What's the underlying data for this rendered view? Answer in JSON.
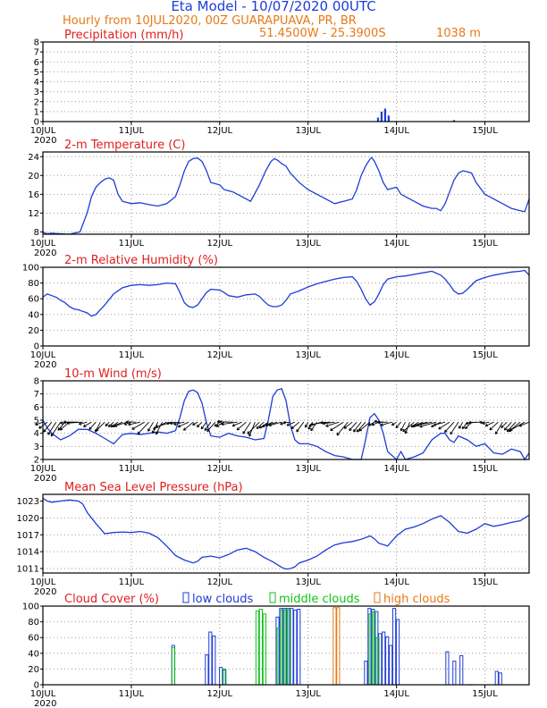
{
  "header": {
    "title": "Eta Model - 10/07/2020 00UTC",
    "subtitle": "Hourly from 10JUL2020, 00Z  GUARAPUAVA, PR, BR",
    "coords": "51.4500W - 25.3900S",
    "elevation": "1038  m"
  },
  "colors": {
    "line": "#1e3cd7",
    "title_red": "#e11e1e",
    "orange": "#e67a17",
    "green": "#11c21b",
    "axis": "#000000",
    "grid": "#9a9a9a"
  },
  "chart_data": [
    {
      "type": "bar",
      "title": "Precipitation (mm/h)",
      "xlim": [
        0,
        5.5
      ],
      "ylim": [
        0,
        8
      ],
      "yticks": [
        0,
        1,
        2,
        3,
        4,
        5,
        6,
        7,
        8
      ],
      "xticks": [
        {
          "day": 0,
          "label": "10JUL",
          "year": "2020"
        },
        {
          "day": 1,
          "label": "11JUL"
        },
        {
          "day": 2,
          "label": "12JUL"
        },
        {
          "day": 3,
          "label": "13JUL"
        },
        {
          "day": 4,
          "label": "14JUL"
        },
        {
          "day": 5,
          "label": "15JUL"
        }
      ],
      "bars": [
        {
          "x": 3.79,
          "v": 0.4
        },
        {
          "x": 3.83,
          "v": 1.0
        },
        {
          "x": 3.87,
          "v": 1.3
        },
        {
          "x": 3.91,
          "v": 0.6
        },
        {
          "x": 4.65,
          "v": 0.15
        }
      ]
    },
    {
      "type": "line",
      "title": "2-m Temperature (C)",
      "xlim": [
        0,
        5.5
      ],
      "ylim": [
        7.5,
        25
      ],
      "yticks": [
        8,
        12,
        16,
        20,
        24
      ],
      "xticks": [
        {
          "day": 0,
          "label": "10JUL",
          "year": "2020"
        },
        {
          "day": 1,
          "label": "11JUL"
        },
        {
          "day": 2,
          "label": "12JUL"
        },
        {
          "day": 3,
          "label": "13JUL"
        },
        {
          "day": 4,
          "label": "14JUL"
        },
        {
          "day": 5,
          "label": "15JUL"
        }
      ],
      "x": [
        0,
        0.04,
        0.1,
        0.2,
        0.3,
        0.42,
        0.5,
        0.55,
        0.6,
        0.65,
        0.7,
        0.75,
        0.8,
        0.85,
        0.9,
        1.0,
        1.1,
        1.2,
        1.3,
        1.4,
        1.5,
        1.55,
        1.6,
        1.65,
        1.7,
        1.75,
        1.8,
        1.85,
        1.9,
        2.0,
        2.05,
        2.15,
        2.25,
        2.35,
        2.45,
        2.52,
        2.58,
        2.62,
        2.66,
        2.7,
        2.75,
        2.8,
        2.85,
        2.9,
        3.0,
        3.1,
        3.2,
        3.3,
        3.4,
        3.5,
        3.55,
        3.6,
        3.65,
        3.7,
        3.72,
        3.75,
        3.8,
        3.85,
        3.9,
        4.0,
        4.05,
        4.1,
        4.2,
        4.3,
        4.4,
        4.45,
        4.5,
        4.55,
        4.6,
        4.65,
        4.7,
        4.75,
        4.8,
        4.85,
        4.9,
        5.0,
        5.1,
        5.2,
        5.3,
        5.4,
        5.45,
        5.5
      ],
      "values": [
        8,
        7.6,
        7.7,
        7.6,
        7.5,
        8.0,
        12,
        15.5,
        17.5,
        18.5,
        19.2,
        19.5,
        19.0,
        16,
        14.5,
        14.0,
        14.2,
        13.8,
        13.5,
        14.0,
        15.5,
        18,
        21,
        23,
        23.6,
        23.7,
        23.0,
        21,
        18.5,
        18.0,
        17.0,
        16.5,
        15.5,
        14.5,
        18,
        21,
        23,
        23.6,
        23.2,
        22.5,
        22.0,
        20.5,
        19.5,
        18.5,
        17.0,
        16.0,
        15.0,
        14.0,
        14.5,
        15.0,
        17,
        20,
        22,
        23.5,
        23.8,
        23.0,
        21,
        18.5,
        17.0,
        17.5,
        16.0,
        15.5,
        14.5,
        13.5,
        13.0,
        13.0,
        12.5,
        14,
        16.5,
        19,
        20.5,
        21.0,
        20.8,
        20.5,
        18.5,
        16.0,
        15.0,
        14.0,
        13.0,
        12.5,
        12.3,
        15.0
      ]
    },
    {
      "type": "line",
      "title": "2-m Relative Humidity (%)",
      "xlim": [
        0,
        5.5
      ],
      "ylim": [
        0,
        100
      ],
      "yticks": [
        0,
        20,
        40,
        60,
        80,
        100
      ],
      "xticks": [
        {
          "day": 0,
          "label": "10JUL",
          "year": "2020"
        },
        {
          "day": 1,
          "label": "11JUL"
        },
        {
          "day": 2,
          "label": "12JUL"
        },
        {
          "day": 3,
          "label": "13JUL"
        },
        {
          "day": 4,
          "label": "14JUL"
        },
        {
          "day": 5,
          "label": "15JUL"
        }
      ],
      "x": [
        0,
        0.05,
        0.1,
        0.15,
        0.2,
        0.25,
        0.3,
        0.35,
        0.4,
        0.45,
        0.5,
        0.55,
        0.6,
        0.7,
        0.8,
        0.9,
        1.0,
        1.1,
        1.2,
        1.3,
        1.4,
        1.5,
        1.55,
        1.6,
        1.65,
        1.7,
        1.75,
        1.8,
        1.85,
        1.9,
        2.0,
        2.05,
        2.1,
        2.2,
        2.3,
        2.4,
        2.45,
        2.5,
        2.55,
        2.6,
        2.65,
        2.7,
        2.75,
        2.8,
        2.9,
        3.0,
        3.1,
        3.2,
        3.3,
        3.4,
        3.5,
        3.55,
        3.6,
        3.65,
        3.7,
        3.75,
        3.8,
        3.85,
        3.9,
        4.0,
        4.1,
        4.2,
        4.3,
        4.4,
        4.5,
        4.55,
        4.6,
        4.65,
        4.7,
        4.75,
        4.8,
        4.9,
        5.0,
        5.1,
        5.2,
        5.3,
        5.4,
        5.45,
        5.5
      ],
      "values": [
        62,
        66,
        64,
        62,
        58,
        55,
        50,
        47,
        46,
        44,
        42,
        38,
        40,
        52,
        66,
        74,
        77,
        78,
        77,
        78,
        80,
        79,
        68,
        55,
        50,
        49,
        52,
        60,
        68,
        72,
        71,
        68,
        64,
        62,
        65,
        66,
        63,
        57,
        52,
        50,
        50,
        52,
        58,
        66,
        70,
        75,
        79,
        82,
        85,
        87,
        88,
        82,
        72,
        60,
        52,
        56,
        66,
        78,
        85,
        88,
        89,
        91,
        93,
        95,
        90,
        85,
        78,
        70,
        66,
        67,
        72,
        83,
        87,
        90,
        92,
        94,
        95,
        96,
        90
      ]
    },
    {
      "type": "line",
      "title": "10-m Wind (m/s)",
      "xlim": [
        0,
        5.5
      ],
      "ylim": [
        2,
        8
      ],
      "yticks": [
        2,
        3,
        4,
        5,
        6,
        7,
        8
      ],
      "xticks": [
        {
          "day": 0,
          "label": "10JUL",
          "year": "2020"
        },
        {
          "day": 1,
          "label": "11JUL"
        },
        {
          "day": 2,
          "label": "12JUL"
        },
        {
          "day": 3,
          "label": "13JUL"
        },
        {
          "day": 4,
          "label": "14JUL"
        },
        {
          "day": 5,
          "label": "15JUL"
        }
      ],
      "x": [
        0,
        0.05,
        0.1,
        0.2,
        0.3,
        0.4,
        0.5,
        0.6,
        0.7,
        0.8,
        0.9,
        1.0,
        1.1,
        1.2,
        1.3,
        1.4,
        1.5,
        1.55,
        1.6,
        1.65,
        1.7,
        1.75,
        1.8,
        1.85,
        1.9,
        2.0,
        2.1,
        2.2,
        2.3,
        2.4,
        2.5,
        2.55,
        2.6,
        2.65,
        2.7,
        2.75,
        2.8,
        2.85,
        2.9,
        3.0,
        3.1,
        3.2,
        3.3,
        3.4,
        3.5,
        3.55,
        3.6,
        3.65,
        3.7,
        3.75,
        3.8,
        3.85,
        3.9,
        4.0,
        4.05,
        4.1,
        4.2,
        4.3,
        4.4,
        4.5,
        4.55,
        4.6,
        4.65,
        4.7,
        4.8,
        4.9,
        5.0,
        5.1,
        5.2,
        5.3,
        5.4,
        5.45,
        5.5
      ],
      "values": [
        5.0,
        4.4,
        4.0,
        3.5,
        3.8,
        4.3,
        4.3,
        4.0,
        3.6,
        3.2,
        3.9,
        4.0,
        3.9,
        4.0,
        4.1,
        4.0,
        4.2,
        5.2,
        6.5,
        7.2,
        7.3,
        7.1,
        6.3,
        4.8,
        3.8,
        3.7,
        4.0,
        3.8,
        3.7,
        3.5,
        3.6,
        5.0,
        6.8,
        7.3,
        7.4,
        6.5,
        4.6,
        3.5,
        3.2,
        3.2,
        3.0,
        2.6,
        2.3,
        2.2,
        2.0,
        1.8,
        2.0,
        3.5,
        5.2,
        5.5,
        5.0,
        4.0,
        2.6,
        2.0,
        2.6,
        2.0,
        2.2,
        2.5,
        3.5,
        4.0,
        4.0,
        3.5,
        3.3,
        3.8,
        3.5,
        3.0,
        3.2,
        2.5,
        2.4,
        2.8,
        2.6,
        2.0,
        2.5
      ]
    },
    {
      "type": "line",
      "title": "Mean Sea Level Pressure (hPa)",
      "xlim": [
        0,
        5.5
      ],
      "ylim": [
        1010.2,
        1024.2
      ],
      "yticks": [
        1011,
        1014,
        1017,
        1020,
        1023
      ],
      "xticks": [
        {
          "day": 0,
          "label": "10JUL",
          "year": "2020"
        },
        {
          "day": 1,
          "label": "11JUL"
        },
        {
          "day": 2,
          "label": "12JUL"
        },
        {
          "day": 3,
          "label": "13JUL"
        },
        {
          "day": 4,
          "label": "14JUL"
        },
        {
          "day": 5,
          "label": "15JUL"
        }
      ],
      "x": [
        0,
        0.05,
        0.1,
        0.2,
        0.3,
        0.4,
        0.45,
        0.5,
        0.6,
        0.7,
        0.8,
        0.9,
        1.0,
        1.1,
        1.2,
        1.3,
        1.4,
        1.5,
        1.6,
        1.7,
        1.75,
        1.8,
        1.9,
        2.0,
        2.1,
        2.2,
        2.3,
        2.4,
        2.5,
        2.6,
        2.7,
        2.75,
        2.8,
        2.85,
        2.9,
        3.0,
        3.1,
        3.2,
        3.3,
        3.4,
        3.5,
        3.6,
        3.7,
        3.75,
        3.8,
        3.9,
        4.0,
        4.1,
        4.2,
        4.3,
        4.4,
        4.5,
        4.6,
        4.7,
        4.8,
        4.9,
        5.0,
        5.1,
        5.2,
        5.3,
        5.4,
        5.5
      ],
      "values": [
        1023.5,
        1023.0,
        1022.8,
        1023.0,
        1023.2,
        1023.0,
        1022.5,
        1021.0,
        1019.0,
        1017.2,
        1017.4,
        1017.5,
        1017.4,
        1017.6,
        1017.3,
        1016.5,
        1015.0,
        1013.3,
        1012.5,
        1012.0,
        1012.3,
        1013.0,
        1013.2,
        1012.9,
        1013.5,
        1014.3,
        1014.6,
        1014.0,
        1013.0,
        1012.2,
        1011.2,
        1010.9,
        1011.0,
        1011.3,
        1012.0,
        1012.5,
        1013.2,
        1014.3,
        1015.2,
        1015.6,
        1015.8,
        1016.2,
        1016.8,
        1016.3,
        1015.5,
        1015.0,
        1016.8,
        1018.0,
        1018.4,
        1019.0,
        1019.8,
        1020.4,
        1019.2,
        1017.6,
        1017.3,
        1018.0,
        1019.0,
        1018.5,
        1018.8,
        1019.2,
        1019.5,
        1020.5
      ]
    },
    {
      "type": "bar",
      "title": "Cloud Cover (%)",
      "xlim": [
        0,
        5.5
      ],
      "ylim": [
        0,
        100
      ],
      "yticks": [
        0,
        20,
        40,
        60,
        80,
        100
      ],
      "xticks": [
        {
          "day": 0,
          "label": "10JUL",
          "year": "2020"
        },
        {
          "day": 1,
          "label": "11JUL"
        },
        {
          "day": 2,
          "label": "12JUL"
        },
        {
          "day": 3,
          "label": "13JUL"
        },
        {
          "day": 4,
          "label": "14JUL"
        },
        {
          "day": 5,
          "label": "15JUL"
        }
      ],
      "legend": {
        "low": "low clouds",
        "middle": "middle clouds",
        "high": "high clouds"
      },
      "series": [
        {
          "name": "low clouds",
          "color": "#1e3cd7",
          "points": [
            {
              "x": 1.48,
              "v": 50
            },
            {
              "x": 1.86,
              "v": 38
            },
            {
              "x": 1.9,
              "v": 67
            },
            {
              "x": 1.94,
              "v": 62
            },
            {
              "x": 2.02,
              "v": 22
            },
            {
              "x": 2.06,
              "v": 19
            },
            {
              "x": 2.66,
              "v": 86
            },
            {
              "x": 2.7,
              "v": 97
            },
            {
              "x": 2.74,
              "v": 97
            },
            {
              "x": 2.78,
              "v": 97
            },
            {
              "x": 2.82,
              "v": 97
            },
            {
              "x": 2.86,
              "v": 95
            },
            {
              "x": 2.9,
              "v": 96
            },
            {
              "x": 3.66,
              "v": 30
            },
            {
              "x": 3.7,
              "v": 97
            },
            {
              "x": 3.74,
              "v": 96
            },
            {
              "x": 3.78,
              "v": 93
            },
            {
              "x": 3.82,
              "v": 65
            },
            {
              "x": 3.86,
              "v": 67
            },
            {
              "x": 3.9,
              "v": 61
            },
            {
              "x": 3.94,
              "v": 50
            },
            {
              "x": 3.98,
              "v": 97
            },
            {
              "x": 4.02,
              "v": 83
            },
            {
              "x": 4.58,
              "v": 42
            },
            {
              "x": 4.66,
              "v": 30
            },
            {
              "x": 4.74,
              "v": 37
            },
            {
              "x": 4.82,
              "v": 0
            },
            {
              "x": 4.86,
              "v": 0
            },
            {
              "x": 5.14,
              "v": 17
            },
            {
              "x": 5.18,
              "v": 15
            }
          ]
        },
        {
          "name": "middle clouds",
          "color": "#11c21b",
          "points": [
            {
              "x": 1.47,
              "v": 47
            },
            {
              "x": 2.04,
              "v": 20
            },
            {
              "x": 2.42,
              "v": 94
            },
            {
              "x": 2.46,
              "v": 96
            },
            {
              "x": 2.5,
              "v": 90
            },
            {
              "x": 2.66,
              "v": 72
            },
            {
              "x": 2.7,
              "v": 95
            },
            {
              "x": 2.74,
              "v": 95
            },
            {
              "x": 2.78,
              "v": 95
            },
            {
              "x": 3.7,
              "v": 90
            },
            {
              "x": 3.74,
              "v": 93
            },
            {
              "x": 3.78,
              "v": 60
            }
          ]
        },
        {
          "name": "high clouds",
          "color": "#e67a17",
          "points": [
            {
              "x": 3.3,
              "v": 98
            },
            {
              "x": 3.34,
              "v": 98
            }
          ]
        }
      ]
    }
  ]
}
